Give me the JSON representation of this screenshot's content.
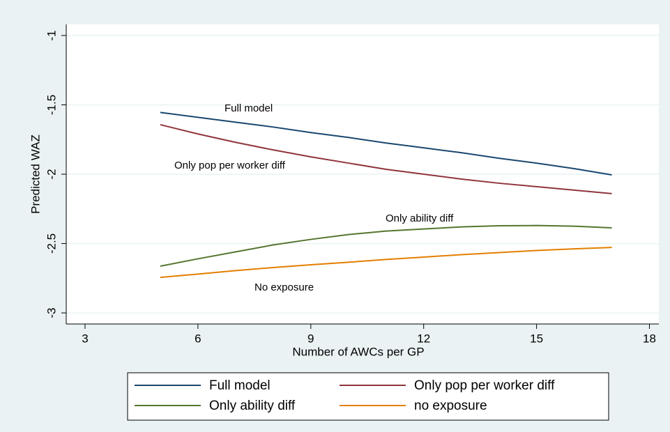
{
  "chart_data": {
    "type": "line",
    "x_label": "Number of AWCs per GP",
    "y_label": "Predicted WAZ",
    "x": [
      5,
      6,
      7,
      8,
      9,
      10,
      11,
      12,
      13,
      14,
      15,
      16,
      17
    ],
    "series": [
      {
        "name": "Full model",
        "color": "#1a476f",
        "values": [
          -1.555,
          -1.59,
          -1.625,
          -1.66,
          -1.7,
          -1.735,
          -1.775,
          -1.81,
          -1.845,
          -1.885,
          -1.92,
          -1.96,
          -2.005
        ]
      },
      {
        "name": "Only pop per worker diff",
        "color": "#90353b",
        "values": [
          -1.643,
          -1.71,
          -1.77,
          -1.825,
          -1.875,
          -1.92,
          -1.965,
          -2.0,
          -2.035,
          -2.065,
          -2.09,
          -2.115,
          -2.14
        ]
      },
      {
        "name": "Only ability diff",
        "color": "#55752f",
        "values": [
          -2.663,
          -2.61,
          -2.56,
          -2.51,
          -2.47,
          -2.435,
          -2.41,
          -2.395,
          -2.38,
          -2.372,
          -2.37,
          -2.375,
          -2.387
        ]
      },
      {
        "name": "no exposure",
        "color": "#e37e00",
        "values": [
          -2.744,
          -2.72,
          -2.695,
          -2.673,
          -2.653,
          -2.635,
          -2.615,
          -2.598,
          -2.58,
          -2.565,
          -2.55,
          -2.538,
          -2.528
        ]
      }
    ],
    "annotations": [
      "Full model",
      "Only pop per worker diff",
      "Only ability diff",
      "No exposure"
    ],
    "xlim": [
      2.5,
      18.25
    ],
    "xticks": [
      3,
      6,
      9,
      12,
      15,
      18
    ],
    "ylim": [
      -3.08,
      -0.92
    ],
    "yticks": [
      -3,
      -2.5,
      -2,
      -1.5,
      -1
    ],
    "grid": true,
    "legend": "bottom"
  }
}
